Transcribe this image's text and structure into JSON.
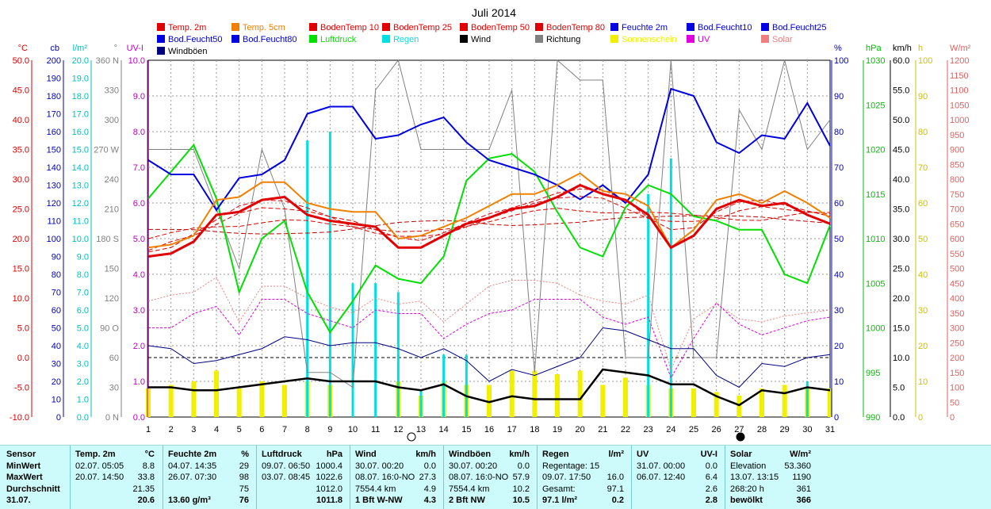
{
  "chart_data": {
    "type": "line",
    "title": "Juli 2014",
    "x": [
      1,
      2,
      3,
      4,
      5,
      6,
      7,
      8,
      9,
      10,
      11,
      12,
      13,
      14,
      15,
      16,
      17,
      18,
      19,
      20,
      21,
      22,
      23,
      24,
      25,
      26,
      27,
      28,
      29,
      30,
      31
    ],
    "legend": [
      {
        "name": "Temp. 2m",
        "color": "#e00000"
      },
      {
        "name": "Temp. 5cm",
        "color": "#f08000"
      },
      {
        "name": "BodenTemp 10",
        "color": "#e00000"
      },
      {
        "name": "BodenTemp 25",
        "color": "#e00000"
      },
      {
        "name": "BodenTemp 50",
        "color": "#e00000"
      },
      {
        "name": "BodenTemp 80",
        "color": "#e00000"
      },
      {
        "name": "Feuchte 2m",
        "color": "#0000e0"
      },
      {
        "name": "Bod.Feucht10",
        "color": "#0000e0"
      },
      {
        "name": "Bod.Feucht25",
        "color": "#0000e0"
      },
      {
        "name": "Bod.Feucht50",
        "color": "#0000e0"
      },
      {
        "name": "Bod.Feucht80",
        "color": "#0000e0"
      },
      {
        "name": "Luftdruck",
        "color": "#00e000"
      },
      {
        "name": "Regen",
        "color": "#00e0e0"
      },
      {
        "name": "Wind",
        "color": "#000000"
      },
      {
        "name": "Richtung",
        "color": "#808080"
      },
      {
        "name": "Sonnenschein",
        "color": "#f0f000"
      },
      {
        "name": "UV",
        "color": "#e000e0"
      },
      {
        "name": "Solar",
        "color": "#f08080"
      },
      {
        "name": "Windböen",
        "color": "#000080"
      }
    ],
    "axes_left": [
      {
        "unit": "°C",
        "color": "#e00000",
        "ticks": [
          "50.0",
          "45.0",
          "40.0",
          "35.0",
          "30.0",
          "25.0",
          "20.0",
          "15.0",
          "10.0",
          "5.0",
          "0.0",
          "-5.0",
          "-10.0"
        ]
      },
      {
        "unit": "cb",
        "color": "#0000c0",
        "ticks": [
          "200",
          "190",
          "180",
          "170",
          "160",
          "150",
          "140",
          "130",
          "120",
          "110",
          "100",
          "90",
          "80",
          "70",
          "60",
          "50",
          "40",
          "30",
          "20",
          "10",
          "0"
        ]
      },
      {
        "unit": "l/m²",
        "color": "#00c0c0",
        "ticks": [
          "20.0",
          "19.0",
          "18.0",
          "17.0",
          "16.0",
          "15.0",
          "14.0",
          "13.0",
          "12.0",
          "11.0",
          "10.0",
          "9.0",
          "8.0",
          "7.0",
          "6.0",
          "5.0",
          "4.0",
          "3.0",
          "2.0",
          "1.0",
          "0.0"
        ]
      },
      {
        "unit": "°",
        "color": "#808080",
        "ticks": [
          "360 N",
          "330",
          "300",
          "270 W",
          "240",
          "210",
          "180 S",
          "150",
          "120",
          "90 O",
          "60",
          "30",
          "0 N"
        ]
      },
      {
        "unit": "UV-I",
        "color": "#c000c0",
        "ticks": [
          "10.0",
          "9.0",
          "8.0",
          "7.0",
          "6.0",
          "5.0",
          "4.0",
          "3.0",
          "2.0",
          "1.0",
          "0.0"
        ]
      }
    ],
    "axes_right": [
      {
        "unit": "%",
        "color": "#0000c0",
        "ticks": [
          "100",
          "90",
          "80",
          "70",
          "60",
          "50",
          "40",
          "30",
          "20",
          "10",
          "0"
        ]
      },
      {
        "unit": "hPa",
        "color": "#00c000",
        "ticks": [
          "1030",
          "1025",
          "1020",
          "1015",
          "1010",
          "1005",
          "1000",
          "995",
          "990"
        ]
      },
      {
        "unit": "km/h",
        "color": "#000000",
        "ticks": [
          "60.0",
          "55.0",
          "50.0",
          "45.0",
          "40.0",
          "35.0",
          "30.0",
          "25.0",
          "20.0",
          "15.0",
          "10.0",
          "5.0",
          "0.0"
        ]
      },
      {
        "unit": "h",
        "color": "#d0c000",
        "ticks": [
          "100",
          "90",
          "80",
          "70",
          "60",
          "50",
          "40",
          "30",
          "20",
          "10",
          "0"
        ]
      },
      {
        "unit": "W/m²",
        "color": "#e06060",
        "ticks": [
          "1200",
          "1150",
          "1100",
          "1050",
          "1000",
          "950",
          "900",
          "850",
          "800",
          "750",
          "700",
          "650",
          "600",
          "550",
          "500",
          "450",
          "400",
          "350",
          "300",
          "250",
          "200",
          "150",
          "100",
          "50",
          "0"
        ]
      }
    ],
    "series": [
      {
        "name": "Temp. 2m",
        "unit": "°C",
        "values": [
          17.0,
          17.5,
          19.5,
          24.0,
          24.5,
          26.5,
          27.0,
          24.0,
          23.0,
          22.5,
          22.0,
          18.5,
          18.5,
          20.5,
          22.5,
          23.5,
          25.0,
          25.5,
          27.0,
          29.0,
          27.5,
          26.5,
          24.0,
          18.5,
          20.5,
          25.0,
          26.5,
          25.5,
          26.0,
          24.0,
          22.5
        ]
      },
      {
        "name": "Temp. 5cm",
        "unit": "°C",
        "values": [
          18.5,
          19.0,
          20.5,
          26.5,
          27.0,
          29.5,
          29.5,
          26.0,
          25.0,
          24.5,
          24.5,
          20.0,
          20.5,
          22.0,
          23.5,
          25.5,
          27.5,
          27.5,
          29.0,
          31.0,
          28.0,
          27.5,
          25.5,
          18.5,
          21.5,
          26.5,
          27.5,
          26.0,
          28.0,
          26.0,
          23.5
        ]
      },
      {
        "name": "Feuchte 2m",
        "unit": "%",
        "values": [
          72,
          68,
          68,
          58,
          67,
          68,
          72,
          85,
          87,
          87,
          78,
          79,
          82,
          84,
          77,
          72,
          70,
          68,
          65,
          61,
          65,
          60,
          68,
          92,
          90,
          77,
          74,
          79,
          78,
          88,
          76
        ]
      },
      {
        "name": "Luftdruck",
        "unit": "hPa",
        "values": [
          1014.5,
          1017.5,
          1020.5,
          1014.5,
          1004.0,
          1010.0,
          1012.0,
          1004.0,
          999.5,
          1003.0,
          1007.0,
          1005.5,
          1005.0,
          1008.0,
          1016.5,
          1019.0,
          1019.5,
          1017.5,
          1013.0,
          1009.0,
          1008.0,
          1013.5,
          1016.0,
          1015.0,
          1012.5,
          1012.0,
          1011.0,
          1011.0,
          1006.0,
          1005.0,
          1011.5
        ]
      },
      {
        "name": "Regen",
        "unit": "l/m²",
        "values": [
          0,
          0,
          0,
          0,
          0,
          0,
          0,
          15.5,
          16.0,
          7.5,
          7.5,
          7.0,
          1.5,
          3.5,
          3.5,
          0,
          0,
          0,
          0,
          0,
          0,
          0,
          12.5,
          14.5,
          0,
          0,
          0,
          0,
          0,
          2.0,
          0
        ]
      },
      {
        "name": "Wind",
        "unit": "km/h",
        "values": [
          5.0,
          5.0,
          4.5,
          4.5,
          5.0,
          5.5,
          6.0,
          6.5,
          6.0,
          6.0,
          6.0,
          5.0,
          4.5,
          5.5,
          3.5,
          2.5,
          3.5,
          3.0,
          3.0,
          3.0,
          8.0,
          7.5,
          7.0,
          5.5,
          5.5,
          3.5,
          2.0,
          4.5,
          4.0,
          5.0,
          4.5
        ]
      },
      {
        "name": "Windböen",
        "unit": "km/h",
        "values": [
          12.0,
          11.5,
          9.0,
          9.5,
          10.5,
          11.5,
          13.5,
          13.0,
          12.0,
          12.5,
          12.5,
          11.5,
          10.0,
          11.5,
          9.5,
          6.0,
          8.0,
          7.0,
          8.5,
          10.0,
          15.0,
          14.5,
          13.0,
          11.5,
          11.5,
          7.0,
          5.0,
          9.0,
          8.5,
          10.0,
          10.5
        ]
      },
      {
        "name": "Richtung",
        "unit": "°",
        "values": [
          270,
          270,
          270,
          210,
          150,
          270,
          210,
          45,
          45,
          30,
          330,
          360,
          270,
          270,
          270,
          270,
          330,
          45,
          360,
          340,
          340,
          60,
          60,
          360,
          60,
          60,
          310,
          270,
          360,
          270,
          300
        ]
      },
      {
        "name": "Sonnenschein",
        "unit": "h",
        "values": [
          8,
          9,
          10,
          13,
          8,
          10,
          9,
          10,
          9,
          0,
          0,
          10,
          6,
          10,
          9,
          9,
          13,
          13,
          12,
          13,
          9,
          11,
          9,
          8,
          8,
          7,
          6,
          8,
          9,
          8,
          8
        ]
      },
      {
        "name": "UV",
        "unit": "UV-I",
        "values": [
          2.5,
          2.5,
          2.9,
          3.1,
          2.3,
          3.3,
          3.3,
          2.9,
          2.7,
          2.5,
          3.0,
          2.9,
          2.9,
          2.2,
          2.6,
          2.9,
          3.0,
          3.3,
          3.3,
          3.3,
          2.8,
          2.6,
          2.8,
          1.1,
          2.2,
          3.2,
          2.6,
          2.3,
          2.5,
          2.7,
          2.8
        ]
      },
      {
        "name": "Solar",
        "unit": "W/m²",
        "values": [
          390,
          410,
          420,
          470,
          320,
          440,
          440,
          400,
          370,
          350,
          400,
          380,
          390,
          320,
          380,
          440,
          460,
          460,
          450,
          410,
          390,
          380,
          410,
          160,
          330,
          380,
          330,
          320,
          340,
          350,
          360
        ]
      }
    ],
    "dates_marked": [
      "12",
      "27"
    ]
  },
  "stats": {
    "headers": {
      "sensor": "Sensor",
      "temp": "Temp. 2m",
      "temp_u": "°C",
      "feuchte": "Feuchte 2m",
      "feuchte_u": "%",
      "luftdruck": "Luftdruck",
      "luftdruck_u": "hPa",
      "wind": "Wind",
      "wind_u": "km/h",
      "windboen": "Windböen",
      "windboen_u": "km/h",
      "regen": "Regen",
      "regen_u": "l/m²",
      "uv": "UV",
      "uv_u": "UV-I",
      "solar": "Solar",
      "solar_u": "W/m²"
    },
    "row_labels": [
      "MinWert",
      "MaxWert",
      "Durchschnitt",
      "31.07."
    ],
    "temp": [
      [
        "02.07.  05:05",
        "8.8"
      ],
      [
        "20.07.  14:50",
        "33.8"
      ],
      [
        "",
        "21.35"
      ],
      [
        "",
        "20.6"
      ]
    ],
    "feuchte": [
      [
        "04.07.  14:35",
        "29"
      ],
      [
        "26.07.  07:30",
        "98"
      ],
      [
        "",
        "75"
      ],
      [
        "13.60 g/m³",
        "76"
      ]
    ],
    "luftdruck": [
      [
        "09.07.  06:50",
        "1000.4"
      ],
      [
        "03.07.  08:45",
        "1022.6"
      ],
      [
        "",
        "1012.0"
      ],
      [
        "",
        "1011.8"
      ]
    ],
    "wind": [
      [
        "30.07.  00:20",
        "0.0"
      ],
      [
        "08.07.  16:0-NO",
        "27.3"
      ],
      [
        "7554.4 km",
        "4.9"
      ],
      [
        "1 Bft W-NW",
        "4.3"
      ]
    ],
    "windboen": [
      [
        "30.07.  00:20",
        "0.0"
      ],
      [
        "08.07.  16:0-NO",
        "57.9"
      ],
      [
        "7554.4 km",
        "10.2"
      ],
      [
        "2 Bft NW",
        "10.5"
      ]
    ],
    "regen": [
      [
        "Regentage: 15",
        ""
      ],
      [
        "09.07.  17:50",
        "16.0"
      ],
      [
        "Gesamt:",
        "97.1"
      ],
      [
        "97.1 l/m²",
        "0.2"
      ]
    ],
    "uv": [
      [
        "31.07.  00:00",
        "0.0"
      ],
      [
        "06.07.  12:40",
        "6.4"
      ],
      [
        "",
        "2.6"
      ],
      [
        "",
        "2.8"
      ]
    ],
    "solar": [
      [
        "Elevation",
        "53.360"
      ],
      [
        "13.07.  13:15",
        "1190"
      ],
      [
        "268:20 h",
        "361"
      ],
      [
        "bewölkt",
        "366"
      ]
    ]
  }
}
